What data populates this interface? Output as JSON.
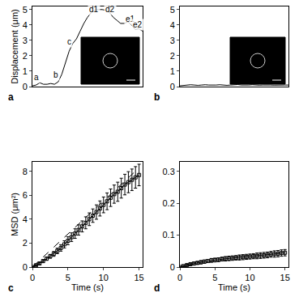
{
  "chart_data": [
    {
      "type": "line",
      "title": "a",
      "y_label": "Displacement (μm)",
      "xlim": [
        0,
        15
      ],
      "ylim": [
        0,
        5.2
      ],
      "yticks": [
        0,
        1,
        2,
        3,
        4,
        5
      ],
      "tick_labels": "y",
      "grid": false,
      "series": [
        {
          "color": "#000000",
          "line_style": "solid",
          "x": [
            0,
            0.5,
            1,
            1.5,
            2,
            2.5,
            3,
            3.5,
            4,
            4.5,
            5,
            5.5,
            6,
            6.5,
            7,
            7.5,
            8,
            8.5,
            9,
            9.5,
            10,
            10.5,
            11,
            11.5,
            12,
            12.5,
            13,
            13.5,
            14,
            14.5,
            15
          ],
          "values": [
            0.05,
            0.1,
            0.25,
            0.15,
            0.15,
            0.2,
            0.15,
            0.3,
            0.8,
            1.5,
            2.3,
            2.8,
            3.1,
            3.6,
            4.1,
            4.5,
            4.8,
            4.95,
            5.0,
            5.0,
            4.95,
            4.8,
            4.5,
            4.3,
            4.1,
            4.1,
            4.2,
            4.0,
            3.7,
            3.75,
            3.6
          ]
        }
      ],
      "annotations": [
        {
          "text": "a",
          "x": 0.6,
          "y": 0.6
        },
        {
          "text": "b",
          "x": 3.2,
          "y": 0.75
        },
        {
          "text": "c",
          "x": 5.0,
          "y": 2.9
        },
        {
          "text": "d1",
          "x": 8.4,
          "y": 5.0
        },
        {
          "text": "d2",
          "x": 10.6,
          "y": 5.0
        },
        {
          "text": "e1",
          "x": 13.3,
          "y": 4.4
        },
        {
          "text": "e2",
          "x": 14.3,
          "y": 4.0
        }
      ]
    },
    {
      "type": "line",
      "title": "b",
      "xlim": [
        0,
        15
      ],
      "ylim": [
        0,
        5.2
      ],
      "yticks": [
        0,
        1,
        2,
        3,
        4,
        5
      ],
      "tick_labels": "y",
      "grid": false,
      "series": [
        {
          "color": "#000000",
          "line_style": "solid",
          "x": [
            0,
            0.5,
            1,
            1.5,
            2,
            2.5,
            3,
            3.5,
            4,
            4.5,
            5,
            5.5,
            6,
            6.5,
            7,
            7.5,
            8,
            8.5,
            9,
            9.5,
            10,
            10.5,
            11,
            11.5,
            12,
            12.5,
            13,
            13.5,
            14,
            14.5,
            15
          ],
          "values": [
            0.05,
            0.08,
            0.1,
            0.12,
            0.1,
            0.08,
            0.1,
            0.12,
            0.1,
            0.09,
            0.1,
            0.12,
            0.1,
            0.08,
            0.1,
            0.11,
            0.13,
            0.1,
            0.09,
            0.1,
            0.12,
            0.1,
            0.09,
            0.1,
            0.11,
            0.1,
            0.09,
            0.1,
            0.12,
            0.1,
            0.1
          ]
        }
      ]
    },
    {
      "type": "line",
      "title": "c",
      "x_label": "Time (s)",
      "y_label": "MSD (μm²)",
      "xlim": [
        0,
        15.5
      ],
      "xticks": [
        0,
        5,
        10,
        15
      ],
      "ylim": [
        0,
        8.8
      ],
      "yticks": [
        0,
        2,
        4,
        6,
        8
      ],
      "grid": false,
      "series": [
        {
          "color": "#000000",
          "line_style": "dashed",
          "x": [
            0,
            15
          ],
          "values": [
            0,
            8.3
          ]
        },
        {
          "color": "#000000",
          "line_style": "solid",
          "marker": "square-open",
          "x": [
            0,
            0.5,
            1,
            1.5,
            2,
            2.5,
            3,
            3.5,
            4,
            4.5,
            5,
            5.5,
            6,
            6.5,
            7,
            7.5,
            8,
            8.5,
            9,
            9.5,
            10,
            10.5,
            11,
            11.5,
            12,
            12.5,
            13,
            13.5,
            14,
            14.5,
            15
          ],
          "values": [
            0,
            0.15,
            0.3,
            0.5,
            0.7,
            0.9,
            1.1,
            1.35,
            1.6,
            1.9,
            2.2,
            2.5,
            2.8,
            3.1,
            3.4,
            3.7,
            4.0,
            4.3,
            4.6,
            4.9,
            5.2,
            5.5,
            5.8,
            6.1,
            6.3,
            6.6,
            6.9,
            7.1,
            7.3,
            7.5,
            7.7
          ],
          "error": [
            0,
            0.05,
            0.08,
            0.1,
            0.13,
            0.16,
            0.2,
            0.23,
            0.27,
            0.3,
            0.33,
            0.36,
            0.4,
            0.43,
            0.46,
            0.5,
            0.53,
            0.56,
            0.6,
            0.63,
            0.66,
            0.7,
            0.73,
            0.76,
            0.8,
            0.83,
            0.86,
            0.88,
            0.9,
            0.9,
            0.9
          ]
        }
      ]
    },
    {
      "type": "line",
      "title": "d",
      "x_label": "Time (s)",
      "xlim": [
        0,
        15.5
      ],
      "xticks": [
        0,
        5,
        10,
        15
      ],
      "ylim": [
        0,
        0.33
      ],
      "yticks": [
        0,
        0.1,
        0.2,
        0.3
      ],
      "grid": false,
      "series": [
        {
          "color": "#000000",
          "line_style": "solid",
          "marker": "square-open",
          "x": [
            0,
            0.5,
            1,
            1.5,
            2,
            2.5,
            3,
            3.5,
            4,
            4.5,
            5,
            5.5,
            6,
            6.5,
            7,
            7.5,
            8,
            8.5,
            9,
            9.5,
            10,
            10.5,
            11,
            11.5,
            12,
            12.5,
            13,
            13.5,
            14,
            14.5,
            15
          ],
          "values": [
            0,
            0.003,
            0.006,
            0.009,
            0.011,
            0.013,
            0.015,
            0.017,
            0.019,
            0.021,
            0.022,
            0.023,
            0.025,
            0.026,
            0.027,
            0.028,
            0.029,
            0.03,
            0.031,
            0.032,
            0.033,
            0.034,
            0.035,
            0.036,
            0.037,
            0.038,
            0.04,
            0.041,
            0.042,
            0.044,
            0.045
          ],
          "error": [
            0,
            0.002,
            0.003,
            0.003,
            0.004,
            0.004,
            0.005,
            0.005,
            0.005,
            0.006,
            0.006,
            0.006,
            0.006,
            0.007,
            0.007,
            0.007,
            0.007,
            0.008,
            0.008,
            0.008,
            0.008,
            0.008,
            0.009,
            0.009,
            0.009,
            0.009,
            0.009,
            0.01,
            0.01,
            0.01,
            0.01
          ]
        }
      ]
    }
  ]
}
